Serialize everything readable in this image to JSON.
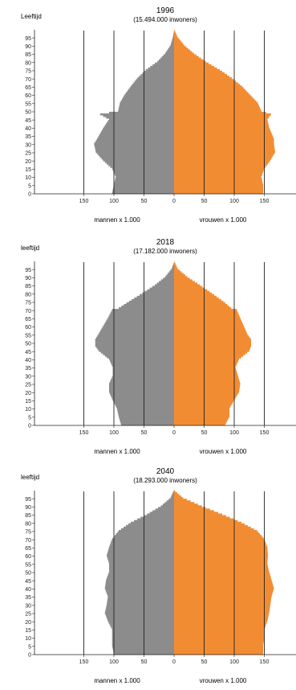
{
  "chart_data": [
    {
      "type": "population-pyramid",
      "title": "1996",
      "subtitle": "(15.494.000 inwoners)",
      "ylabel": "Leeftijd",
      "xlabel_left": "mannen x 1.000",
      "xlabel_right": "vrouwen x 1.000",
      "y_ticks": [
        "0",
        "5",
        "10",
        "15",
        "20",
        "25",
        "30",
        "35",
        "40",
        "45",
        "50",
        "55",
        "60",
        "65",
        "70",
        "75",
        "80",
        "85",
        "90",
        "95"
      ],
      "x_ticks": [
        "150",
        "100",
        "50",
        "0",
        "50",
        "100",
        "150"
      ],
      "xlim": [
        -150,
        150
      ],
      "ylim": [
        0,
        99
      ],
      "colors": {
        "men": "#8c8c8c",
        "women": "#f28c32"
      },
      "profile_ages": [
        0,
        5,
        10,
        15,
        20,
        25,
        30,
        33,
        40,
        45,
        48,
        50,
        55,
        60,
        65,
        70,
        75,
        80,
        85,
        90,
        95,
        99
      ],
      "men": [
        103,
        100,
        97,
        103,
        118,
        130,
        133,
        128,
        117,
        108,
        123,
        93,
        90,
        82,
        72,
        61,
        47,
        28,
        15,
        6,
        2,
        0
      ],
      "women": [
        148,
        148,
        145,
        150,
        160,
        168,
        166,
        166,
        158,
        155,
        161,
        145,
        139,
        126,
        113,
        96,
        76,
        53,
        33,
        17,
        6,
        1
      ]
    },
    {
      "type": "population-pyramid",
      "title": "2018",
      "subtitle": "(17.182.000 inwoners)",
      "ylabel": "leeftijd",
      "xlabel_left": "mannen x 1.000",
      "xlabel_right": "vrouwen x 1.000",
      "y_ticks": [
        "0",
        "5",
        "10",
        "15",
        "20",
        "25",
        "30",
        "35",
        "40",
        "45",
        "50",
        "55",
        "60",
        "65",
        "70",
        "75",
        "80",
        "85",
        "90",
        "95"
      ],
      "x_ticks": [
        "150",
        "100",
        "50",
        "0",
        "50",
        "100",
        "150"
      ],
      "xlim": [
        -150,
        150
      ],
      "ylim": [
        0,
        99
      ],
      "colors": {
        "men": "#8c8c8c",
        "women": "#f28c32"
      },
      "profile_ages": [
        0,
        5,
        10,
        15,
        20,
        25,
        30,
        35,
        40,
        45,
        48,
        52,
        55,
        60,
        65,
        70,
        71,
        75,
        80,
        85,
        90,
        95,
        99
      ],
      "men": [
        88,
        92,
        95,
        102,
        108,
        108,
        102,
        102,
        108,
        125,
        131,
        131,
        126,
        118,
        110,
        103,
        92,
        75,
        53,
        32,
        15,
        4,
        0
      ],
      "women": [
        85,
        92,
        92,
        100,
        108,
        110,
        106,
        102,
        108,
        125,
        128,
        128,
        122,
        116,
        110,
        104,
        95,
        82,
        63,
        43,
        22,
        6,
        1
      ]
    },
    {
      "type": "population-pyramid",
      "title": "2040",
      "subtitle": "(18.293.000 inwoners)",
      "ylabel": "leeftijd",
      "xlabel_left": "mannen x 1.000",
      "xlabel_right": "vrouwen x 1.000",
      "y_ticks": [
        "0",
        "5",
        "10",
        "15",
        "20",
        "25",
        "30",
        "35",
        "40",
        "45",
        "50",
        "55",
        "60",
        "65",
        "70",
        "75",
        "80",
        "85",
        "90",
        "95"
      ],
      "x_ticks": [
        "150",
        "100",
        "50",
        "0",
        "50",
        "100",
        "150"
      ],
      "xlim": [
        -150,
        150
      ],
      "ylim": [
        0,
        99
      ],
      "colors": {
        "men": "#8c8c8c",
        "women": "#f28c32"
      },
      "profile_ages": [
        0,
        5,
        10,
        15,
        20,
        25,
        30,
        35,
        40,
        45,
        50,
        55,
        60,
        65,
        70,
        75,
        80,
        85,
        90,
        95,
        99
      ],
      "men": [
        100,
        103,
        103,
        103,
        110,
        115,
        112,
        110,
        115,
        113,
        108,
        108,
        112,
        108,
        103,
        92,
        72,
        45,
        22,
        6,
        1
      ],
      "women": [
        148,
        148,
        150,
        150,
        155,
        158,
        160,
        162,
        166,
        162,
        158,
        155,
        156,
        155,
        150,
        138,
        112,
        80,
        46,
        15,
        2
      ]
    }
  ]
}
